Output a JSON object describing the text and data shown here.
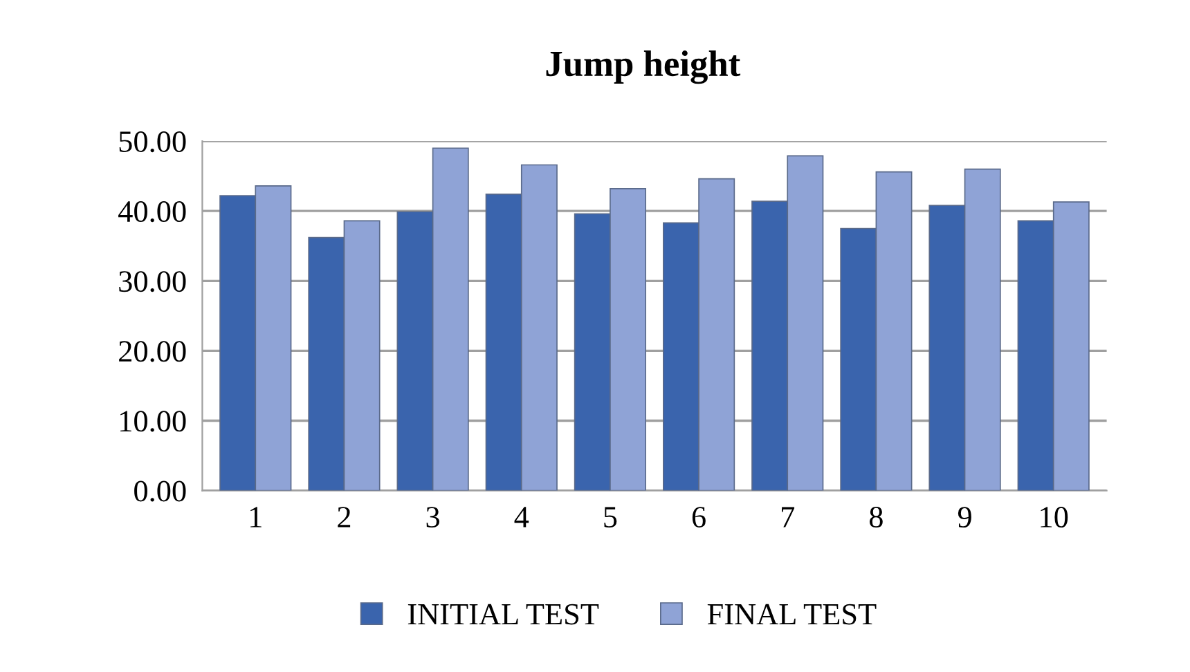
{
  "chart_data": {
    "type": "bar",
    "title": "Jump height",
    "categories": [
      "1",
      "2",
      "3",
      "4",
      "5",
      "6",
      "7",
      "8",
      "9",
      "10"
    ],
    "series": [
      {
        "name": "INITIAL TEST",
        "color": "#3a64ad",
        "values": [
          42.2,
          36.2,
          39.9,
          42.4,
          39.6,
          38.3,
          41.4,
          37.5,
          40.8,
          38.6
        ]
      },
      {
        "name": "FINAL TEST",
        "color": "#8fa3d6",
        "values": [
          43.6,
          38.6,
          49.0,
          46.6,
          43.2,
          44.6,
          47.9,
          45.6,
          46.0,
          41.3
        ]
      }
    ],
    "ylim": [
      0,
      50
    ],
    "yticks": [
      {
        "value": 0,
        "label": "0.00"
      },
      {
        "value": 10,
        "label": "10.00"
      },
      {
        "value": 20,
        "label": "20.00"
      },
      {
        "value": 30,
        "label": "30.00"
      },
      {
        "value": 40,
        "label": "40.00"
      },
      {
        "value": 50,
        "label": "50.00"
      }
    ],
    "grid": "y",
    "legend": "bottom"
  }
}
